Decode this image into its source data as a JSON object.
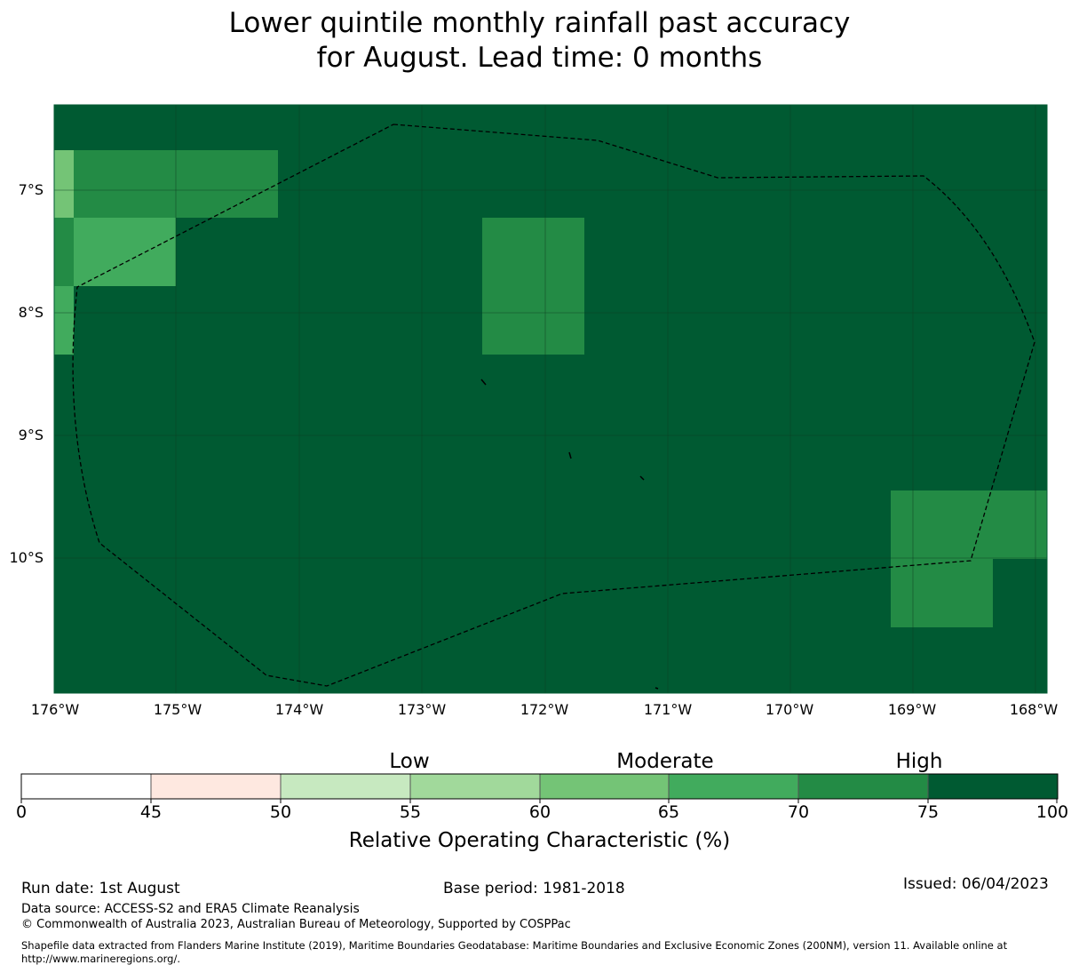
{
  "title": {
    "line1": "Lower quintile monthly rainfall past accuracy",
    "line2": "for August. Lead time: 0 months"
  },
  "map": {
    "lat_labels": [
      "7°S",
      "8°S",
      "9°S",
      "10°S"
    ],
    "lon_labels": [
      "176°W",
      "175°W",
      "174°W",
      "173°W",
      "172°W",
      "171°W",
      "170°W",
      "169°W",
      "168°W"
    ],
    "background_color": "#005a32",
    "gridline_color": "#004020",
    "boundary_style": "dashed black line"
  },
  "colorbar": {
    "category_labels": [
      "Low",
      "Moderate",
      "High"
    ],
    "ticks": [
      "0",
      "45",
      "50",
      "55",
      "60",
      "65",
      "70",
      "75",
      "100"
    ],
    "colors": [
      "#ffffff",
      "#fee8e0",
      "#c7e9c0",
      "#a1d99b",
      "#74c476",
      "#41ab5d",
      "#238b45",
      "#005a32"
    ],
    "axis_label": "Relative Operating Characteristic (%)"
  },
  "footer": {
    "run_date": "Run date: 1st August",
    "base_period": "Base period: 1981-2018",
    "issued": "Issued: 06/04/2023",
    "data_source": "Data source: ACCESS-S2 and ERA5 Climate Reanalysis",
    "copyright": "© Commonwealth of Australia 2023, Australian Bureau of Meteorology, Supported by COSPPac",
    "shapefile_line1": "Shapefile data extracted from Flanders Marine Institute (2019), Maritime Boundaries Geodatabase: Maritime Boundaries and Exclusive Economic Zones (200NM), version 11. Available online at",
    "shapefile_line2": "http://www.marineregions.org/."
  }
}
